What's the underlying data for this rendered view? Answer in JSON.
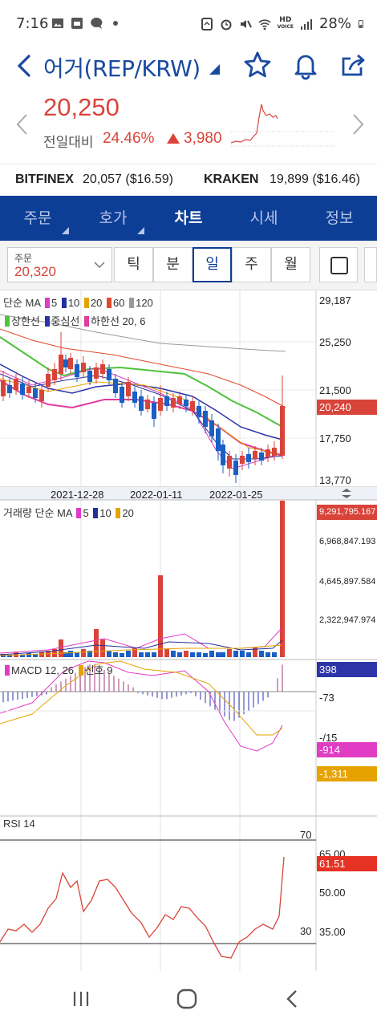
{
  "status": {
    "time": "7:16",
    "battery": "28%",
    "hd_label": "HD",
    "hd_sub": "VOICE"
  },
  "header": {
    "title": "어거(REP/KRW)",
    "icons": [
      "back-arrow-icon",
      "star-icon",
      "bell-icon",
      "share-icon"
    ]
  },
  "price": {
    "current": "20,250",
    "change_label": "전일대비",
    "change_pct": "24.46%",
    "change_amount": "3,980"
  },
  "exchanges": [
    {
      "name": "BITFINEX",
      "value": "20,057 ($16.59)"
    },
    {
      "name": "KRAKEN",
      "value": "19,899 ($16.46)"
    }
  ],
  "tabs": [
    {
      "label": "주문",
      "has_menu": true,
      "active": false
    },
    {
      "label": "호가",
      "has_menu": true,
      "active": false
    },
    {
      "label": "차트",
      "has_menu": false,
      "active": true
    },
    {
      "label": "시세",
      "has_menu": false,
      "active": false
    },
    {
      "label": "정보",
      "has_menu": false,
      "active": false
    }
  ],
  "period": {
    "order_label": "주문",
    "order_value": "20,320",
    "buttons": [
      "틱",
      "분",
      "일",
      "주",
      "월"
    ],
    "active": "일"
  },
  "colors": {
    "up": "#d9443a",
    "down": "#1a5fc4",
    "ma5": "#e03cc4",
    "ma10": "#23309e",
    "ma20": "#e6a300",
    "ma60": "#e04a2a",
    "ma120": "#9a9a9a",
    "band_upper": "#4ec23a",
    "band_mid": "#2c34a8",
    "band_lower": "#e03c9c",
    "navy": "#0d3e96"
  },
  "chart_data": [
    {
      "type": "candlestick",
      "title": "단순 MA",
      "ma_periods": [
        "5",
        "10",
        "20",
        "60",
        "120"
      ],
      "envelope_legend": [
        "상한선",
        "중심선",
        "하한선 20, 6"
      ],
      "y_ticks": [
        "29,187",
        "25,250",
        "21,500",
        "17,750",
        "13,770"
      ],
      "last_price_tag": "20,240",
      "x_ticks": [
        "2021-12-28",
        "2022-01-11",
        "2022-01-25"
      ]
    },
    {
      "type": "bar",
      "title": "거래량 단순 MA",
      "ma_periods": [
        "5",
        "10",
        "20"
      ],
      "y_ticks": [
        "9,291,795.167",
        "6,968,847.193",
        "4,645,897.584",
        "2,322,947.974"
      ]
    },
    {
      "type": "line",
      "title": "MACD 12, 26",
      "signal_label": "신호 9",
      "tags": [
        "398",
        "-914",
        "-1,311"
      ],
      "y_ticks": [
        "-73",
        "-/15"
      ]
    },
    {
      "type": "line",
      "title": "RSI 14",
      "y_ticks": [
        "70",
        "65.00",
        "50.00",
        "35.00",
        "30"
      ],
      "current_value": "61.51",
      "reference_lines": [
        70,
        30
      ]
    }
  ]
}
